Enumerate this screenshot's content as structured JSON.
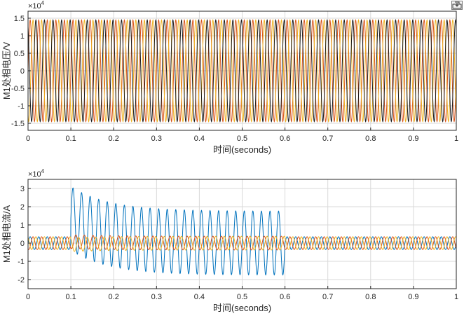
{
  "toolbar": {
    "icon": "export-plot-icon"
  },
  "colors": {
    "series1": "#0072BD",
    "series2": "#D95319",
    "series3": "#EDB120",
    "series_black": "#1a1a1a",
    "grid": "#d9d9d9",
    "axes": "#262626"
  },
  "chart_data": [
    {
      "type": "line",
      "name": "top-voltage-plot",
      "exponent_label": "×10",
      "exponent_power": "4",
      "xlabel": "时间(seconds)",
      "ylabel": "M1处相电压/V",
      "xlim": [
        0,
        1
      ],
      "ylim": [
        -1.7,
        1.7
      ],
      "scale": 10000,
      "x_ticks": [
        "0",
        "0.1",
        "0.2",
        "0.3",
        "0.4",
        "0.5",
        "0.6",
        "0.7",
        "0.8",
        "0.9",
        "1"
      ],
      "y_ticks": [
        {
          "value": 1.5,
          "label": "1.5"
        },
        {
          "value": 1,
          "label": "1"
        },
        {
          "value": 0.5,
          "label": "0.5"
        },
        {
          "value": 0,
          "label": "0"
        },
        {
          "value": -0.5,
          "label": "-0.5"
        },
        {
          "value": -1,
          "label": "-1"
        },
        {
          "value": -1.5,
          "label": "-1.5"
        }
      ],
      "grid": true,
      "frequency_hz": 50,
      "series": [
        {
          "amplitude": 1.45,
          "phase_deg": 0,
          "color": "#D95319"
        },
        {
          "amplitude": 1.45,
          "phase_deg": -120,
          "color": "#EDB120"
        },
        {
          "amplitude": 1.45,
          "phase_deg": 120,
          "color": "#1a1a1a"
        }
      ]
    },
    {
      "type": "line",
      "name": "bottom-current-plot",
      "exponent_label": "×10",
      "exponent_power": "4",
      "xlabel": "时间(seconds)",
      "ylabel": "M1处相电流/A",
      "xlim": [
        0,
        1
      ],
      "ylim": [
        -2.5,
        3.5
      ],
      "scale": 10000,
      "x_ticks": [
        "0",
        "0.1",
        "0.2",
        "0.3",
        "0.4",
        "0.5",
        "0.6",
        "0.7",
        "0.8",
        "0.9",
        "1"
      ],
      "y_ticks": [
        {
          "value": 3,
          "label": "3"
        },
        {
          "value": 2,
          "label": "2"
        },
        {
          "value": 1,
          "label": "1"
        },
        {
          "value": 0,
          "label": "0"
        },
        {
          "value": -1,
          "label": "-1"
        },
        {
          "value": -2,
          "label": "-2"
        }
      ],
      "grid": true,
      "frequency_hz": 50,
      "fault_start": 0.1,
      "fault_end": 0.6,
      "series": [
        {
          "normal_amplitude": 0.35,
          "phase_deg": 0,
          "color": "#0072BD",
          "fault_ac_amplitude": 1.75,
          "fault_dc_offset_initial": 1.35,
          "fault_dc_decay_s": 0.09
        },
        {
          "normal_amplitude": 0.35,
          "phase_deg": -120,
          "color": "#D95319",
          "fault_ac_amplitude": 0.38,
          "fault_dc_offset_initial": 0.08,
          "fault_dc_decay_s": 0.09
        },
        {
          "normal_amplitude": 0.35,
          "phase_deg": 120,
          "color": "#EDB120",
          "fault_ac_amplitude": 0.38,
          "fault_dc_offset_initial": -0.08,
          "fault_dc_decay_s": 0.09
        }
      ]
    }
  ]
}
